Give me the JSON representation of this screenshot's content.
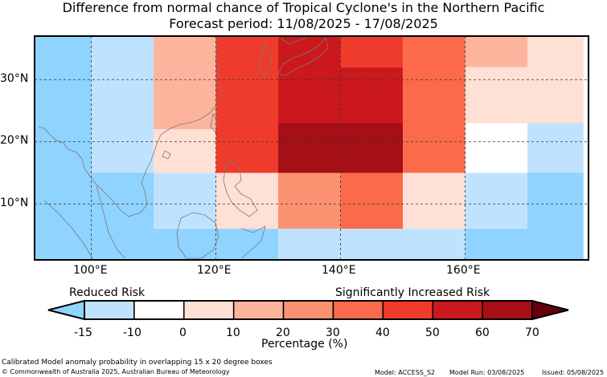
{
  "title": "Difference from normal chance of Tropical Cyclone's in the Northern Pacific",
  "subtitle": "Forecast period: 11/08/2025 - 17/08/2025",
  "axes": {
    "lon_ticks": [
      "100°E",
      "120°E",
      "140°E",
      "160°E"
    ],
    "lat_ticks": [
      "30°N",
      "20°N",
      "10°N"
    ]
  },
  "colorbar": {
    "left_label": "Reduced Risk",
    "right_label": "Significantly Increased Risk",
    "tick_labels": [
      "-15",
      "-10",
      "0",
      "10",
      "20",
      "30",
      "40",
      "50",
      "60",
      "70"
    ],
    "xlabel": "Percentage (%)",
    "colors": [
      "#bfe3ff",
      "#ffffff",
      "#ffe0d5",
      "#fcb59c",
      "#fc9272",
      "#fb6a4a",
      "#ef3b2c",
      "#cb181d",
      "#a50f15"
    ],
    "under_color": "#8fd3ff",
    "over_color": "#67000d"
  },
  "footer": {
    "note": "Calibrated Model anomaly probability in overlapping 15 x 20 degree boxes",
    "copyright": "© Commonwealth of Australia 2025, Australian Bureau of Meteorology",
    "model": "Model: ACCESS_S2",
    "model_run": "Model Run: 03/08/2025",
    "issued": "Issued: 05/08/2025"
  },
  "map_cells": [
    {
      "lon": [
        90,
        100
      ],
      "lat": [
        1,
        37
      ],
      "color": "#8fd3ff"
    },
    {
      "lon": [
        100,
        110
      ],
      "lat": [
        15,
        37
      ],
      "color": "#bfe3ff"
    },
    {
      "lon": [
        100,
        110
      ],
      "lat": [
        1,
        15
      ],
      "color": "#8fd3ff"
    },
    {
      "lon": [
        110,
        120
      ],
      "lat": [
        22,
        37
      ],
      "color": "#fcb59c"
    },
    {
      "lon": [
        110,
        120
      ],
      "lat": [
        15,
        22
      ],
      "color": "#ffe0d5"
    },
    {
      "lon": [
        110,
        120
      ],
      "lat": [
        6,
        15
      ],
      "color": "#bfe3ff"
    },
    {
      "lon": [
        110,
        120
      ],
      "lat": [
        1,
        6
      ],
      "color": "#8fd3ff"
    },
    {
      "lon": [
        120,
        130
      ],
      "lat": [
        15,
        37
      ],
      "color": "#ef3b2c"
    },
    {
      "lon": [
        120,
        130
      ],
      "lat": [
        6,
        15
      ],
      "color": "#ffe0d5"
    },
    {
      "lon": [
        120,
        130
      ],
      "lat": [
        1,
        6
      ],
      "color": "#8fd3ff"
    },
    {
      "lon": [
        130,
        140
      ],
      "lat": [
        23,
        37
      ],
      "color": "#cb181d"
    },
    {
      "lon": [
        130,
        140
      ],
      "lat": [
        15,
        23
      ],
      "color": "#a50f15"
    },
    {
      "lon": [
        130,
        140
      ],
      "lat": [
        6,
        15
      ],
      "color": "#fc9272"
    },
    {
      "lon": [
        130,
        140
      ],
      "lat": [
        1,
        6
      ],
      "color": "#bfe3ff"
    },
    {
      "lon": [
        140,
        150
      ],
      "lat": [
        32,
        37
      ],
      "color": "#ef3b2c"
    },
    {
      "lon": [
        140,
        150
      ],
      "lat": [
        23,
        32
      ],
      "color": "#cb181d"
    },
    {
      "lon": [
        140,
        150
      ],
      "lat": [
        15,
        23
      ],
      "color": "#a50f15"
    },
    {
      "lon": [
        140,
        150
      ],
      "lat": [
        6,
        15
      ],
      "color": "#fb6a4a"
    },
    {
      "lon": [
        140,
        150
      ],
      "lat": [
        1,
        6
      ],
      "color": "#bfe3ff"
    },
    {
      "lon": [
        150,
        160
      ],
      "lat": [
        15,
        37
      ],
      "color": "#fb6a4a"
    },
    {
      "lon": [
        150,
        160
      ],
      "lat": [
        6,
        15
      ],
      "color": "#ffe0d5"
    },
    {
      "lon": [
        150,
        160
      ],
      "lat": [
        1,
        6
      ],
      "color": "#bfe3ff"
    },
    {
      "lon": [
        160,
        170
      ],
      "lat": [
        32,
        37
      ],
      "color": "#fcb59c"
    },
    {
      "lon": [
        160,
        170
      ],
      "lat": [
        23,
        32
      ],
      "color": "#ffe0d5"
    },
    {
      "lon": [
        160,
        170
      ],
      "lat": [
        15,
        23
      ],
      "color": "#ffffff"
    },
    {
      "lon": [
        160,
        170
      ],
      "lat": [
        6,
        15
      ],
      "color": "#bfe3ff"
    },
    {
      "lon": [
        160,
        170
      ],
      "lat": [
        1,
        6
      ],
      "color": "#8fd3ff"
    },
    {
      "lon": [
        170,
        179
      ],
      "lat": [
        23,
        37
      ],
      "color": "#ffe0d5"
    },
    {
      "lon": [
        170,
        179
      ],
      "lat": [
        15,
        23
      ],
      "color": "#bfe3ff"
    },
    {
      "lon": [
        170,
        179
      ],
      "lat": [
        1,
        15
      ],
      "color": "#8fd3ff"
    }
  ]
}
